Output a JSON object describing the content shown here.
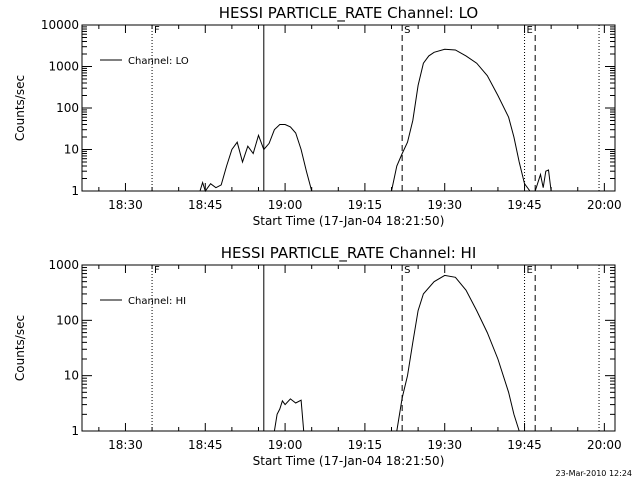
{
  "footer_timestamp": "23-Mar-2010 12:24",
  "chart_data": [
    {
      "type": "line",
      "title": "HESSI PARTICLE_RATE Channel: LO",
      "xlabel": "Start Time (17-Jan-04 18:21:50)",
      "ylabel": "Counts/sec",
      "yscale": "log",
      "ylim": [
        1,
        10000
      ],
      "xlim": [
        "18:21:50",
        "20:02:00"
      ],
      "xticks": [
        "18:30",
        "18:45",
        "19:00",
        "19:15",
        "19:30",
        "19:45",
        "20:00"
      ],
      "yticks": [
        "1",
        "10",
        "100",
        "1000",
        "10000"
      ],
      "legend": "Channel: LO",
      "markers": [
        {
          "label": "F",
          "time": "18:35:00",
          "style": "dotted"
        },
        {
          "label": "",
          "time": "18:56:00",
          "style": "solid"
        },
        {
          "label": "S",
          "time": "19:22:00",
          "style": "dashed"
        },
        {
          "label": "E",
          "time": "19:45:00",
          "style": "dotted"
        },
        {
          "label": "",
          "time": "19:47:00",
          "style": "dashed"
        },
        {
          "label": "",
          "time": "19:59:00",
          "style": "dotted"
        }
      ],
      "series": [
        {
          "segments": [
            [
              [
                "18:44:00",
                1
              ],
              [
                "18:44:30",
                1.6
              ],
              [
                "18:45:00",
                1
              ],
              [
                "18:46:00",
                1.5
              ],
              [
                "18:47:00",
                1.2
              ],
              [
                "18:48:00",
                1.4
              ],
              [
                "18:49:00",
                4
              ],
              [
                "18:50:00",
                10
              ],
              [
                "18:51:00",
                15
              ],
              [
                "18:52:00",
                5
              ],
              [
                "18:53:00",
                12
              ],
              [
                "18:54:00",
                8
              ],
              [
                "18:55:00",
                22
              ],
              [
                "18:56:00",
                10
              ],
              [
                "18:57:00",
                14
              ],
              [
                "18:58:00",
                30
              ],
              [
                "18:59:00",
                40
              ],
              [
                "19:00:00",
                40
              ],
              [
                "19:01:00",
                35
              ],
              [
                "19:02:00",
                25
              ],
              [
                "19:03:00",
                10
              ],
              [
                "19:04:00",
                3
              ],
              [
                "19:05:00",
                1
              ]
            ],
            [
              [
                "19:20:00",
                1
              ],
              [
                "19:21:00",
                4
              ],
              [
                "19:22:00",
                8
              ],
              [
                "19:23:00",
                15
              ],
              [
                "19:24:00",
                50
              ],
              [
                "19:25:00",
                350
              ],
              [
                "19:26:00",
                1200
              ],
              [
                "19:27:00",
                1800
              ],
              [
                "19:28:00",
                2200
              ],
              [
                "19:30:00",
                2600
              ],
              [
                "19:32:00",
                2500
              ],
              [
                "19:34:00",
                1800
              ],
              [
                "19:36:00",
                1200
              ],
              [
                "19:38:00",
                600
              ],
              [
                "19:40:00",
                200
              ],
              [
                "19:42:00",
                60
              ],
              [
                "19:43:00",
                20
              ],
              [
                "19:44:00",
                5
              ],
              [
                "19:45:00",
                1.5
              ],
              [
                "19:46:00",
                1
              ]
            ],
            [
              [
                "19:47:00",
                1
              ],
              [
                "19:48:00",
                2.5
              ],
              [
                "19:48:30",
                1.2
              ],
              [
                "19:49:00",
                3
              ],
              [
                "19:49:30",
                3.2
              ],
              [
                "19:50:00",
                1
              ]
            ]
          ]
        }
      ]
    },
    {
      "type": "line",
      "title": "HESSI PARTICLE_RATE Channel: HI",
      "xlabel": "Start Time (17-Jan-04 18:21:50)",
      "ylabel": "Counts/sec",
      "yscale": "log",
      "ylim": [
        1,
        1000
      ],
      "xlim": [
        "18:21:50",
        "20:02:00"
      ],
      "xticks": [
        "18:30",
        "18:45",
        "19:00",
        "19:15",
        "19:30",
        "19:45",
        "20:00"
      ],
      "yticks": [
        "1",
        "10",
        "100",
        "1000"
      ],
      "legend": "Channel: HI",
      "markers": [
        {
          "label": "F",
          "time": "18:35:00",
          "style": "dotted"
        },
        {
          "label": "",
          "time": "18:56:00",
          "style": "solid"
        },
        {
          "label": "S",
          "time": "19:22:00",
          "style": "dashed"
        },
        {
          "label": "E",
          "time": "19:45:00",
          "style": "dotted"
        },
        {
          "label": "",
          "time": "19:47:00",
          "style": "dashed"
        },
        {
          "label": "",
          "time": "19:59:00",
          "style": "dotted"
        }
      ],
      "series": [
        {
          "segments": [
            [
              [
                "18:58:00",
                1
              ],
              [
                "18:58:30",
                2
              ],
              [
                "18:59:00",
                2.5
              ],
              [
                "18:59:30",
                3.5
              ],
              [
                "19:00:00",
                3
              ],
              [
                "19:01:00",
                3.8
              ],
              [
                "19:02:00",
                3.2
              ],
              [
                "19:03:00",
                3.6
              ],
              [
                "19:03:30",
                1
              ]
            ],
            [
              [
                "19:21:00",
                1
              ],
              [
                "19:22:00",
                4
              ],
              [
                "19:23:00",
                10
              ],
              [
                "19:24:00",
                40
              ],
              [
                "19:25:00",
                150
              ],
              [
                "19:26:00",
                300
              ],
              [
                "19:28:00",
                500
              ],
              [
                "19:30:00",
                650
              ],
              [
                "19:32:00",
                600
              ],
              [
                "19:34:00",
                350
              ],
              [
                "19:36:00",
                150
              ],
              [
                "19:38:00",
                60
              ],
              [
                "19:40:00",
                20
              ],
              [
                "19:42:00",
                5
              ],
              [
                "19:43:00",
                2
              ],
              [
                "19:44:00",
                1
              ]
            ]
          ]
        }
      ]
    }
  ]
}
